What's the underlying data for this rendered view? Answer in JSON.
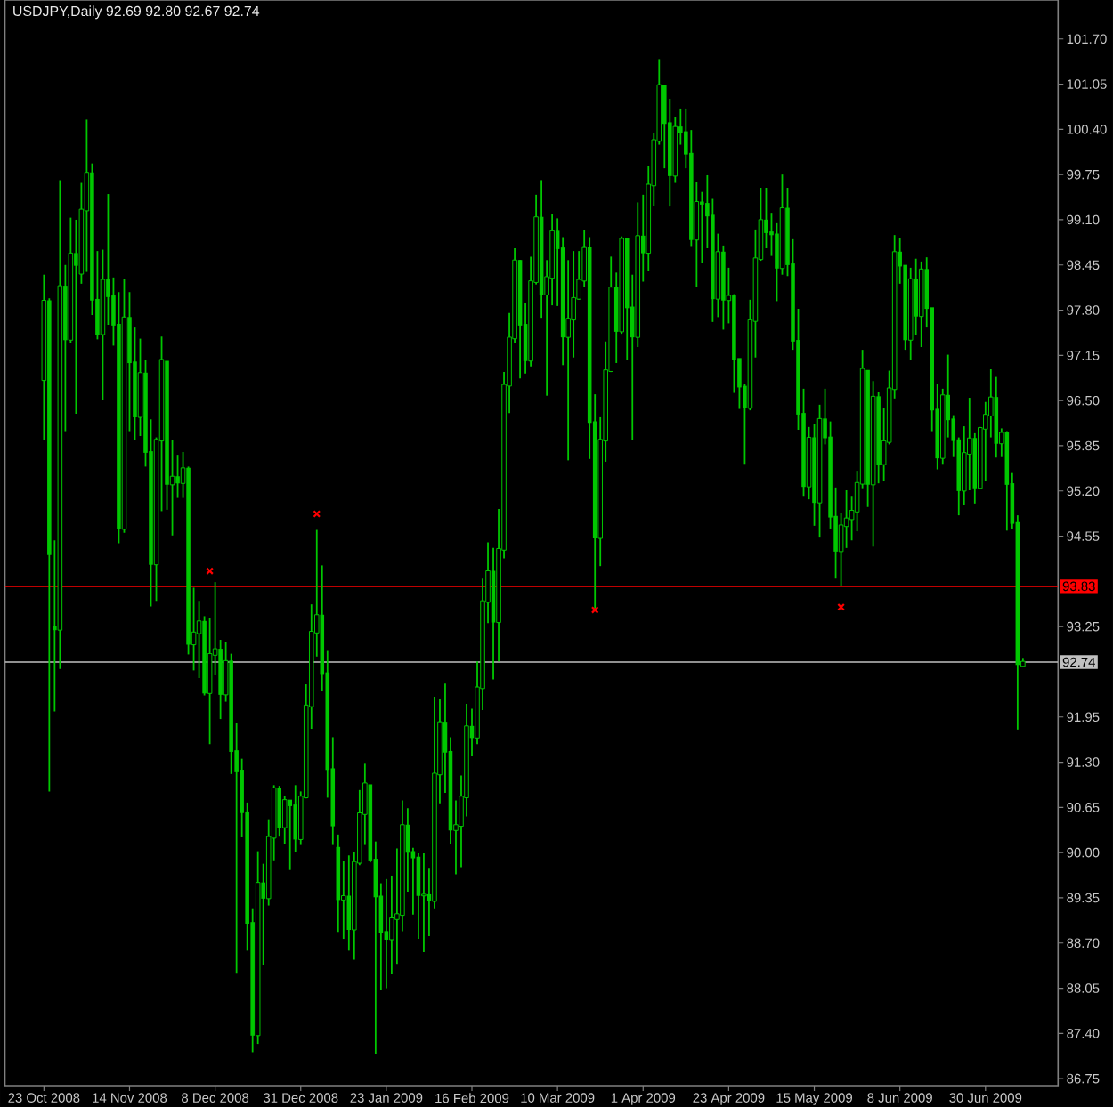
{
  "chart_data": {
    "type": "candlestick",
    "title": "USDJPY,Daily 92.69 92.80 92.67 92.74",
    "color": "#00c800",
    "categories": [
      "23 Oct 2008",
      null,
      null,
      null,
      null,
      null,
      null,
      null,
      null,
      null,
      null,
      null,
      null,
      null,
      null,
      null,
      "14 Nov 2008",
      null,
      null,
      null,
      null,
      null,
      null,
      null,
      null,
      null,
      null,
      null,
      null,
      null,
      null,
      null,
      "8 Dec 2008",
      null,
      null,
      null,
      null,
      null,
      null,
      null,
      null,
      null,
      null,
      null,
      null,
      null,
      null,
      null,
      "31 Dec 2008",
      null,
      null,
      null,
      null,
      null,
      null,
      null,
      null,
      null,
      null,
      null,
      null,
      null,
      null,
      null,
      "23 Jan 2009",
      null,
      null,
      null,
      null,
      null,
      null,
      null,
      null,
      null,
      null,
      null,
      null,
      null,
      null,
      null,
      "16 Feb 2009",
      null,
      null,
      null,
      null,
      null,
      null,
      null,
      null,
      null,
      null,
      null,
      null,
      null,
      null,
      null,
      "10 Mar 2009",
      null,
      null,
      null,
      null,
      null,
      null,
      null,
      null,
      null,
      null,
      null,
      null,
      null,
      null,
      null,
      "1 Apr 2009",
      null,
      null,
      null,
      null,
      null,
      null,
      null,
      null,
      null,
      null,
      null,
      null,
      null,
      null,
      null,
      "23 Apr 2009",
      null,
      null,
      null,
      null,
      null,
      null,
      null,
      null,
      null,
      null,
      null,
      null,
      null,
      null,
      null,
      "15 May 2009",
      null,
      null,
      null,
      null,
      null,
      null,
      null,
      null,
      null,
      null,
      null,
      null,
      null,
      null,
      null,
      "8 Jun 2009",
      null,
      null,
      null,
      null,
      null,
      null,
      null,
      null,
      null,
      null,
      null,
      null,
      null,
      null,
      null,
      "30 Jun 2009",
      null,
      null,
      null,
      null,
      null,
      null,
      null
    ],
    "ohlc": [
      [
        96.8,
        98.31,
        95.93,
        97.93
      ],
      [
        97.93,
        97.97,
        90.88,
        94.29
      ],
      [
        93.25,
        94.49,
        92.03,
        93.21
      ],
      [
        93.21,
        99.67,
        92.64,
        98.14
      ],
      [
        98.14,
        98.45,
        96.06,
        97.38
      ],
      [
        97.38,
        99.13,
        97.33,
        98.61
      ],
      [
        98.61,
        99.1,
        96.31,
        98.45
      ],
      [
        98.33,
        99.63,
        98.18,
        99.24
      ],
      [
        99.24,
        100.54,
        98.35,
        99.77
      ],
      [
        99.77,
        99.91,
        97.73,
        97.95
      ],
      [
        97.95,
        98.65,
        97.38,
        97.46
      ],
      [
        97.46,
        98.67,
        96.51,
        98.23
      ],
      [
        98.23,
        99.47,
        97.59,
        98.0
      ],
      [
        98.0,
        98.27,
        97.29,
        97.59
      ],
      [
        97.59,
        98.06,
        94.45,
        94.66
      ],
      [
        94.66,
        98.25,
        94.6,
        97.69
      ],
      [
        97.69,
        98.06,
        96.06,
        97.05
      ],
      [
        97.05,
        97.55,
        95.93,
        96.27
      ],
      [
        96.27,
        97.39,
        95.99,
        96.89
      ],
      [
        96.89,
        97.08,
        95.55,
        95.76
      ],
      [
        95.76,
        96.23,
        93.54,
        94.15
      ],
      [
        94.15,
        95.97,
        93.62,
        95.93
      ],
      [
        95.93,
        97.42,
        94.91,
        97.08
      ],
      [
        97.06,
        97.06,
        94.93,
        95.3
      ],
      [
        95.3,
        95.93,
        94.56,
        95.4
      ],
      [
        95.4,
        95.72,
        95.1,
        95.32
      ],
      [
        95.32,
        95.76,
        95.1,
        95.52
      ],
      [
        95.52,
        95.55,
        92.85,
        93.0
      ],
      [
        93.0,
        93.81,
        92.62,
        93.16
      ],
      [
        93.16,
        93.62,
        92.51,
        93.32
      ],
      [
        93.32,
        93.4,
        92.26,
        92.3
      ],
      [
        92.3,
        93.38,
        91.56,
        92.85
      ],
      [
        92.85,
        93.89,
        92.55,
        92.92
      ],
      [
        92.92,
        93.06,
        91.92,
        92.28
      ],
      [
        92.28,
        93.03,
        92.17,
        92.75
      ],
      [
        92.75,
        92.86,
        91.13,
        91.46
      ],
      [
        91.46,
        91.86,
        88.27,
        91.18
      ],
      [
        91.18,
        91.35,
        90.22,
        90.58
      ],
      [
        90.58,
        90.72,
        88.59,
        88.99
      ],
      [
        88.99,
        89.2,
        87.13,
        87.38
      ],
      [
        87.38,
        90.02,
        87.25,
        89.56
      ],
      [
        89.56,
        89.84,
        88.39,
        89.35
      ],
      [
        89.35,
        90.48,
        89.24,
        90.22
      ],
      [
        90.22,
        90.97,
        89.89,
        90.92
      ],
      [
        90.92,
        90.96,
        90.23,
        90.37
      ],
      [
        90.37,
        90.82,
        90.13,
        90.75
      ],
      [
        90.75,
        90.75,
        89.75,
        90.68
      ],
      [
        90.68,
        90.97,
        90.01,
        90.2
      ],
      [
        90.2,
        90.88,
        90.11,
        90.8
      ],
      [
        90.8,
        92.42,
        90.78,
        92.11
      ],
      [
        92.11,
        93.57,
        91.78,
        93.17
      ],
      [
        93.17,
        94.64,
        92.82,
        93.41
      ],
      [
        93.41,
        94.13,
        92.32,
        92.58
      ],
      [
        92.58,
        92.9,
        90.79,
        91.2
      ],
      [
        91.2,
        91.66,
        90.11,
        90.39
      ],
      [
        90.07,
        90.26,
        88.86,
        89.33
      ],
      [
        89.33,
        89.88,
        88.76,
        89.37
      ],
      [
        89.37,
        89.96,
        88.59,
        88.9
      ],
      [
        88.9,
        90.01,
        88.46,
        89.86
      ],
      [
        89.86,
        90.9,
        89.82,
        90.56
      ],
      [
        90.56,
        91.29,
        90.11,
        90.99
      ],
      [
        90.97,
        90.97,
        89.86,
        89.9
      ],
      [
        89.9,
        90.16,
        87.1,
        89.37
      ],
      [
        89.37,
        89.56,
        88.03,
        88.86
      ],
      [
        88.86,
        89.62,
        88.05,
        88.76
      ],
      [
        88.76,
        89.67,
        88.25,
        89.05
      ],
      [
        89.05,
        90.06,
        88.4,
        89.11
      ],
      [
        89.11,
        90.75,
        88.87,
        90.39
      ],
      [
        90.39,
        90.64,
        89.44,
        90.01
      ],
      [
        90.01,
        90.07,
        89.11,
        89.93
      ],
      [
        89.93,
        89.99,
        88.76,
        89.39
      ],
      [
        89.39,
        89.99,
        88.57,
        89.39
      ],
      [
        89.39,
        89.78,
        88.8,
        89.31
      ],
      [
        89.31,
        92.24,
        89.2,
        91.13
      ],
      [
        91.13,
        92.21,
        90.71,
        91.87
      ],
      [
        91.87,
        92.43,
        90.86,
        91.45
      ],
      [
        91.45,
        91.66,
        90.12,
        90.33
      ],
      [
        90.33,
        90.75,
        89.69,
        90.39
      ],
      [
        90.39,
        91.11,
        89.79,
        90.8
      ],
      [
        90.8,
        92.14,
        90.52,
        91.81
      ],
      [
        91.81,
        92.07,
        91.39,
        91.66
      ],
      [
        91.66,
        92.75,
        91.56,
        92.37
      ],
      [
        92.37,
        93.94,
        92.05,
        93.61
      ],
      [
        93.61,
        94.46,
        93.3,
        94.04
      ],
      [
        94.04,
        94.38,
        92.49,
        93.32
      ],
      [
        93.32,
        94.94,
        92.75,
        94.36
      ],
      [
        94.36,
        96.91,
        94.23,
        96.72
      ],
      [
        96.72,
        97.76,
        96.32,
        97.4
      ],
      [
        97.4,
        98.69,
        97.33,
        98.51
      ],
      [
        98.51,
        98.52,
        96.82,
        97.59
      ],
      [
        97.59,
        97.9,
        96.89,
        97.08
      ],
      [
        97.08,
        98.57,
        96.99,
        98.21
      ],
      [
        98.21,
        99.46,
        98.17,
        99.13
      ],
      [
        99.13,
        99.67,
        97.69,
        98.03
      ],
      [
        98.03,
        98.52,
        96.57,
        98.27
      ],
      [
        98.27,
        99.18,
        97.87,
        98.93
      ],
      [
        98.93,
        99.12,
        97.86,
        98.69
      ],
      [
        98.69,
        98.85,
        97.01,
        97.42
      ],
      [
        97.42,
        98.52,
        95.64,
        97.67
      ],
      [
        97.67,
        98.65,
        97.12,
        97.97
      ],
      [
        97.97,
        98.65,
        97.95,
        98.23
      ],
      [
        98.23,
        98.95,
        98.14,
        98.69
      ],
      [
        98.69,
        98.85,
        95.66,
        96.19
      ],
      [
        96.19,
        96.59,
        93.51,
        94.53
      ],
      [
        94.53,
        96.26,
        94.12,
        95.93
      ],
      [
        95.93,
        97.35,
        95.62,
        96.93
      ],
      [
        96.93,
        98.57,
        96.91,
        98.12
      ],
      [
        98.12,
        98.34,
        97.04,
        97.5
      ],
      [
        97.5,
        98.86,
        97.46,
        98.82
      ],
      [
        98.82,
        98.82,
        97.08,
        97.84
      ],
      [
        97.84,
        98.31,
        95.93,
        97.42
      ],
      [
        97.42,
        99.35,
        97.27,
        98.86
      ],
      [
        98.86,
        99.46,
        98.21,
        98.63
      ],
      [
        98.63,
        99.88,
        98.37,
        99.6
      ],
      [
        99.6,
        100.35,
        99.3,
        100.24
      ],
      [
        100.24,
        101.41,
        100.18,
        101.03
      ],
      [
        101.03,
        101.04,
        99.84,
        100.49
      ],
      [
        100.49,
        100.84,
        99.29,
        99.74
      ],
      [
        99.74,
        100.58,
        99.63,
        100.43
      ],
      [
        100.43,
        100.7,
        100.18,
        100.36
      ],
      [
        100.36,
        100.7,
        99.84,
        100.05
      ],
      [
        100.05,
        100.39,
        98.71,
        98.82
      ],
      [
        98.82,
        99.64,
        98.14,
        99.35
      ],
      [
        99.35,
        99.5,
        98.48,
        99.33
      ],
      [
        99.33,
        99.74,
        98.69,
        99.16
      ],
      [
        99.16,
        99.4,
        97.63,
        97.97
      ],
      [
        97.97,
        98.9,
        97.7,
        98.63
      ],
      [
        98.63,
        98.73,
        97.52,
        97.95
      ],
      [
        97.95,
        98.41,
        97.61,
        98.0
      ],
      [
        98.0,
        98.03,
        96.61,
        97.1
      ],
      [
        97.1,
        97.1,
        96.38,
        96.7
      ],
      [
        96.7,
        96.74,
        95.59,
        96.4
      ],
      [
        96.4,
        97.95,
        96.36,
        97.65
      ],
      [
        97.65,
        98.96,
        97.12,
        98.54
      ],
      [
        98.54,
        99.56,
        98.51,
        99.09
      ],
      [
        99.09,
        99.56,
        98.69,
        98.92
      ],
      [
        98.92,
        99.2,
        98.58,
        98.89
      ],
      [
        98.89,
        99.05,
        97.93,
        98.41
      ],
      [
        98.41,
        99.75,
        98.31,
        99.26
      ],
      [
        99.26,
        99.56,
        98.29,
        98.46
      ],
      [
        98.46,
        98.82,
        97.23,
        97.36
      ],
      [
        97.36,
        97.82,
        96.08,
        96.31
      ],
      [
        96.31,
        96.67,
        95.13,
        95.27
      ],
      [
        95.27,
        96.12,
        95.08,
        95.96
      ],
      [
        95.96,
        96.16,
        94.7,
        95.04
      ],
      [
        95.04,
        96.44,
        94.53,
        96.23
      ],
      [
        96.23,
        96.67,
        95.87,
        95.97
      ],
      [
        95.97,
        96.2,
        94.66,
        94.83
      ],
      [
        94.83,
        95.25,
        93.94,
        94.34
      ],
      [
        94.34,
        94.89,
        93.83,
        94.7
      ],
      [
        94.7,
        95.21,
        94.38,
        94.8
      ],
      [
        94.8,
        95.13,
        94.49,
        94.91
      ],
      [
        94.91,
        95.49,
        94.62,
        95.31
      ],
      [
        95.31,
        97.23,
        95.24,
        96.95
      ],
      [
        96.93,
        96.93,
        94.97,
        95.3
      ],
      [
        95.3,
        96.78,
        94.4,
        96.55
      ],
      [
        96.55,
        96.63,
        95.31,
        95.59
      ],
      [
        95.59,
        96.4,
        95.35,
        95.91
      ],
      [
        95.91,
        96.93,
        95.87,
        96.67
      ],
      [
        96.67,
        98.88,
        96.53,
        98.63
      ],
      [
        98.63,
        98.84,
        98.18,
        98.44
      ],
      [
        98.44,
        98.44,
        97.23,
        97.38
      ],
      [
        97.38,
        98.41,
        97.08,
        98.24
      ],
      [
        98.24,
        98.54,
        97.44,
        97.72
      ],
      [
        97.72,
        98.5,
        97.27,
        98.38
      ],
      [
        98.38,
        98.56,
        97.55,
        97.83
      ],
      [
        97.83,
        97.83,
        96.06,
        96.37
      ],
      [
        96.37,
        96.74,
        95.51,
        95.68
      ],
      [
        95.68,
        96.67,
        95.59,
        96.57
      ],
      [
        96.57,
        97.16,
        95.97,
        96.23
      ],
      [
        96.23,
        96.29,
        95.7,
        95.93
      ],
      [
        95.93,
        95.97,
        94.85,
        95.21
      ],
      [
        95.21,
        96.13,
        95.0,
        95.74
      ],
      [
        95.74,
        96.54,
        95.21,
        95.95
      ],
      [
        95.95,
        96.03,
        95.02,
        95.25
      ],
      [
        95.25,
        96.12,
        95.25,
        96.1
      ],
      [
        96.1,
        96.48,
        95.34,
        96.29
      ],
      [
        96.29,
        96.95,
        95.97,
        96.54
      ],
      [
        96.54,
        96.84,
        95.68,
        95.89
      ],
      [
        95.89,
        96.1,
        95.7,
        96.03
      ],
      [
        96.03,
        96.06,
        94.63,
        95.3
      ],
      [
        95.3,
        95.47,
        94.66,
        94.74
      ],
      [
        94.74,
        94.85,
        91.77,
        92.71
      ],
      [
        92.69,
        92.8,
        92.67,
        92.74
      ]
    ],
    "series": [
      {
        "type": "scatter",
        "color": "#ff0000",
        "marker": "cross",
        "values": [
          null,
          null,
          null,
          null,
          null,
          null,
          null,
          null,
          null,
          null,
          null,
          null,
          null,
          null,
          null,
          null,
          null,
          null,
          null,
          null,
          null,
          null,
          null,
          null,
          null,
          null,
          null,
          null,
          null,
          null,
          null,
          94.05,
          null,
          null,
          null,
          null,
          null,
          null,
          null,
          null,
          null,
          null,
          null,
          null,
          null,
          null,
          null,
          null,
          null,
          null,
          null,
          94.87,
          null,
          null,
          null,
          null,
          null,
          null,
          null,
          null,
          null,
          null,
          null,
          null,
          null,
          null,
          null,
          null,
          null,
          null,
          null,
          null,
          null,
          null,
          null,
          null,
          null,
          null,
          null,
          null,
          null,
          null,
          null,
          null,
          null,
          null,
          null,
          null,
          null,
          null,
          null,
          null,
          null,
          null,
          null,
          null,
          null,
          null,
          null,
          null,
          null,
          null,
          null,
          93.49,
          null,
          null,
          null,
          null,
          null,
          null,
          null,
          null,
          null,
          null,
          null,
          null,
          null,
          null,
          null,
          null,
          null,
          null,
          null,
          null,
          null,
          null,
          null,
          null,
          null,
          null,
          null,
          null,
          null,
          null,
          null,
          null,
          null,
          null,
          null,
          null,
          null,
          null,
          null,
          null,
          null,
          null,
          null,
          null,
          null,
          93.53,
          null,
          null,
          null,
          null,
          null,
          null,
          null,
          null,
          null,
          null,
          null,
          null,
          null,
          null,
          null,
          null,
          null,
          null,
          null,
          null,
          null,
          null,
          null,
          null,
          null,
          null,
          null,
          null,
          null,
          null,
          null,
          null,
          null,
          null
        ]
      }
    ],
    "ylim": [
      86.65,
      102.26
    ],
    "yticks": [
      86.75,
      {
        "value": 87.4,
        "label": "87.40"
      },
      88.05,
      {
        "value": 88.7,
        "label": "88.70"
      },
      89.35,
      {
        "value": 90.0,
        "label": "90.00"
      },
      90.65,
      {
        "value": 91.3,
        "label": "91.30"
      },
      91.95,
      93.25,
      94.55,
      {
        "value": 95.2,
        "label": "95.20"
      },
      95.85,
      {
        "value": 96.5,
        "label": "96.50"
      },
      97.15,
      {
        "value": 97.8,
        "label": "97.80"
      },
      98.45,
      {
        "value": 99.1,
        "label": "99.10"
      },
      99.75,
      {
        "value": 100.4,
        "label": "100.40"
      },
      101.05,
      {
        "value": 101.7,
        "label": "101.70"
      }
    ],
    "ref_lines": [
      {
        "axis": "y",
        "value": 93.83,
        "label": "93.83",
        "color": "#ff0000"
      },
      {
        "axis": "y",
        "value": 92.74,
        "label": "92.74",
        "color": "#c0c0c0"
      }
    ]
  }
}
